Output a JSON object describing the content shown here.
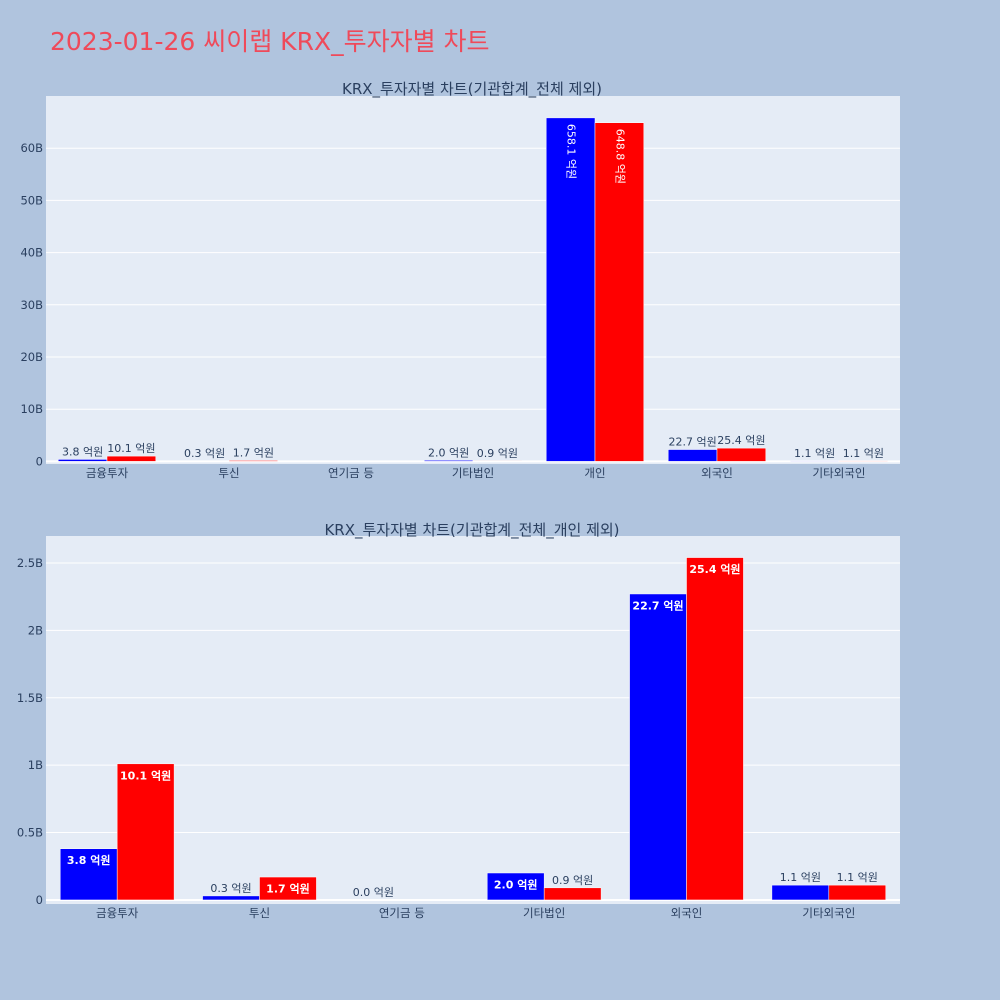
{
  "page_title": "2023-01-26 씨이랩 KRX_투자자별 차트",
  "colors": {
    "background": "#b0c4de",
    "plot_bg": "#e5ecf6",
    "title": "#ef4a5a",
    "series_a": "#0000ff",
    "series_b": "#ff0000"
  },
  "chart_data": [
    {
      "type": "bar",
      "title": "KRX_투자자별 차트(기관합계_전체 제외)",
      "categories": [
        "금융투자",
        "투신",
        "연기금 등",
        "기타법인",
        "개인",
        "외국인",
        "기타외국인"
      ],
      "series": [
        {
          "color": "#0000ff",
          "values": [
            0.38,
            0.03,
            0,
            0.2,
            65.81,
            2.27,
            0.11
          ],
          "labels": [
            "3.8 억원",
            "0.3 억원",
            "",
            "2.0 억원",
            "658.1 억원",
            "22.7 억원",
            "1.1 억원"
          ]
        },
        {
          "color": "#ff0000",
          "values": [
            1.01,
            0.17,
            0,
            0.09,
            64.88,
            2.54,
            0.11
          ],
          "labels": [
            "10.1 억원",
            "1.7 억원",
            "",
            "0.9 억원",
            "648.8 억원",
            "25.4 억원",
            "1.1 억원"
          ]
        }
      ],
      "yticks": [
        0,
        10,
        20,
        30,
        40,
        50,
        60
      ],
      "ytick_labels": [
        "0",
        "10B",
        "20B",
        "30B",
        "40B",
        "50B",
        "60B"
      ],
      "ylim": [
        -0.5,
        70
      ],
      "grid": true
    },
    {
      "type": "bar",
      "title": "KRX_투자자별 차트(기관합계_전체_개인 제외)",
      "categories": [
        "금융투자",
        "투신",
        "연기금 등",
        "기타법인",
        "외국인",
        "기타외국인"
      ],
      "series": [
        {
          "color": "#0000ff",
          "values": [
            0.38,
            0.03,
            0,
            0.2,
            2.27,
            0.11
          ],
          "labels": [
            "3.8 억원",
            "0.3 억원",
            "0.0 억원",
            "2.0 억원",
            "22.7 억원",
            "1.1 억원"
          ]
        },
        {
          "color": "#ff0000",
          "values": [
            1.01,
            0.17,
            0,
            0.09,
            2.54,
            0.11
          ],
          "labels": [
            "10.1 억원",
            "1.7 억원",
            "",
            "0.9 억원",
            "25.4 억원",
            "1.1 억원"
          ]
        }
      ],
      "yticks": [
        0,
        0.5,
        1,
        1.5,
        2,
        2.5
      ],
      "ytick_labels": [
        "0",
        "0.5B",
        "1B",
        "1.5B",
        "2B",
        "2.5B"
      ],
      "ylim": [
        -0.03,
        2.7
      ],
      "grid": true
    }
  ]
}
